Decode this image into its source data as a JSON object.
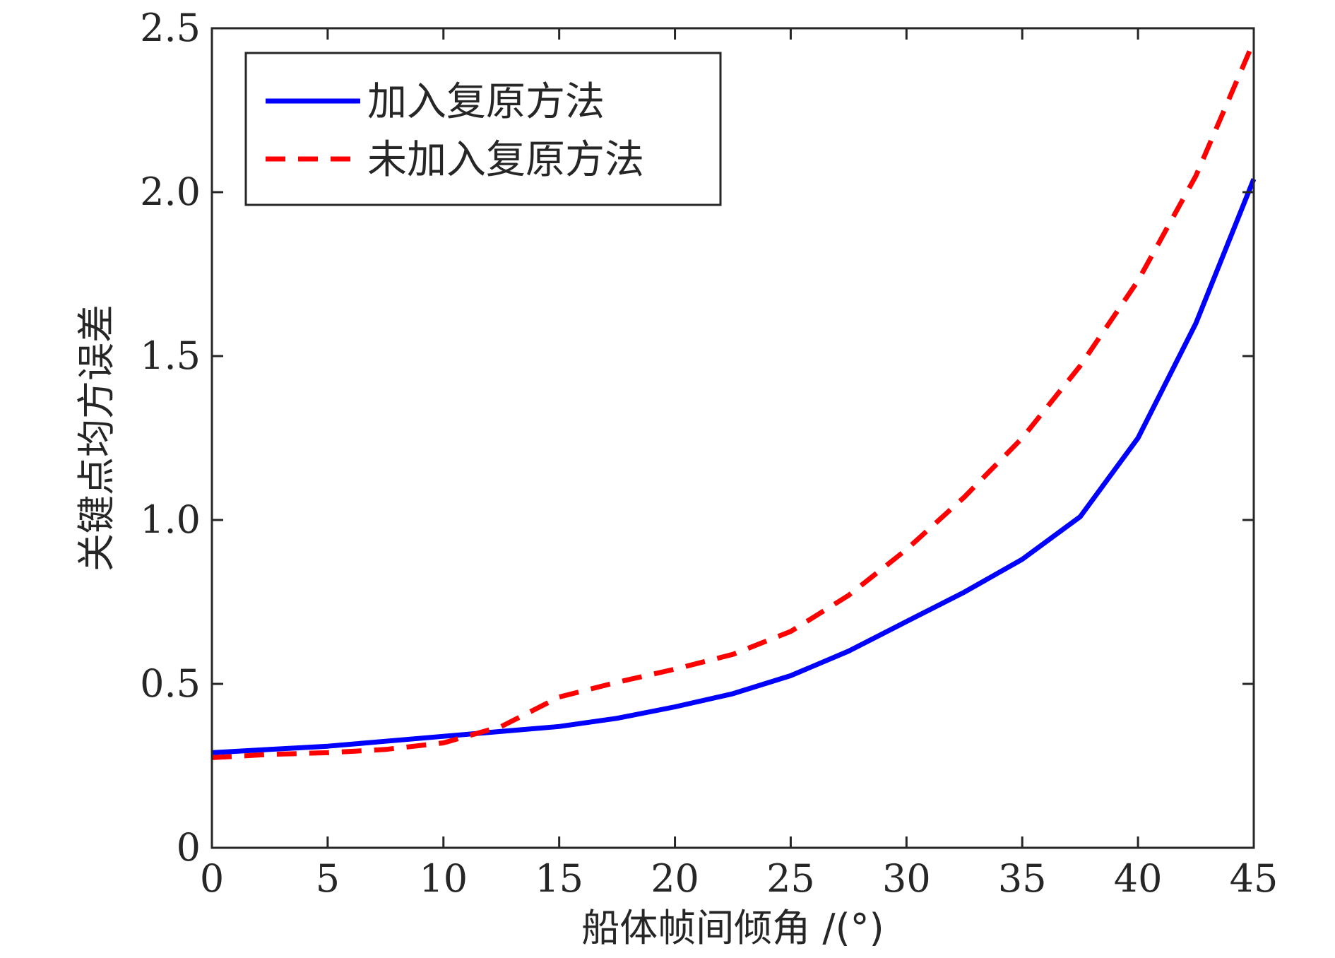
{
  "chart_data": {
    "type": "line",
    "xlabel": "船体帧间倾角 /(°)",
    "ylabel": "关键点均方误差",
    "xlim": [
      0,
      45
    ],
    "ylim": [
      0,
      2.5
    ],
    "xticks": [
      "0",
      "5",
      "10",
      "15",
      "20",
      "25",
      "30",
      "35",
      "40",
      "45"
    ],
    "yticks": [
      "0",
      "0.5",
      "1.0",
      "1.5",
      "2.0",
      "2.5"
    ],
    "grid": false,
    "legend_position": "top-left",
    "series": [
      {
        "name": "加入复原方法",
        "color": "#0000ff",
        "style": "solid",
        "x": [
          0,
          2.5,
          5,
          7.5,
          10,
          12.5,
          15,
          17.5,
          20,
          22.5,
          25,
          27.5,
          30,
          32.5,
          35,
          37.5,
          40,
          42.5,
          45
        ],
        "y": [
          0.29,
          0.3,
          0.31,
          0.325,
          0.34,
          0.355,
          0.37,
          0.395,
          0.43,
          0.47,
          0.525,
          0.6,
          0.69,
          0.78,
          0.88,
          1.01,
          1.25,
          1.6,
          2.04
        ]
      },
      {
        "name": "未加入复原方法",
        "color": "#ff0000",
        "style": "dashed",
        "x": [
          0,
          2.5,
          5,
          7.5,
          10,
          12.5,
          15,
          17.5,
          20,
          22.5,
          25,
          27.5,
          30,
          32.5,
          35,
          37.5,
          40,
          42.5,
          45
        ],
        "y": [
          0.275,
          0.285,
          0.29,
          0.3,
          0.32,
          0.37,
          0.46,
          0.505,
          0.545,
          0.59,
          0.66,
          0.77,
          0.91,
          1.07,
          1.25,
          1.47,
          1.73,
          2.05,
          2.46
        ]
      }
    ]
  }
}
